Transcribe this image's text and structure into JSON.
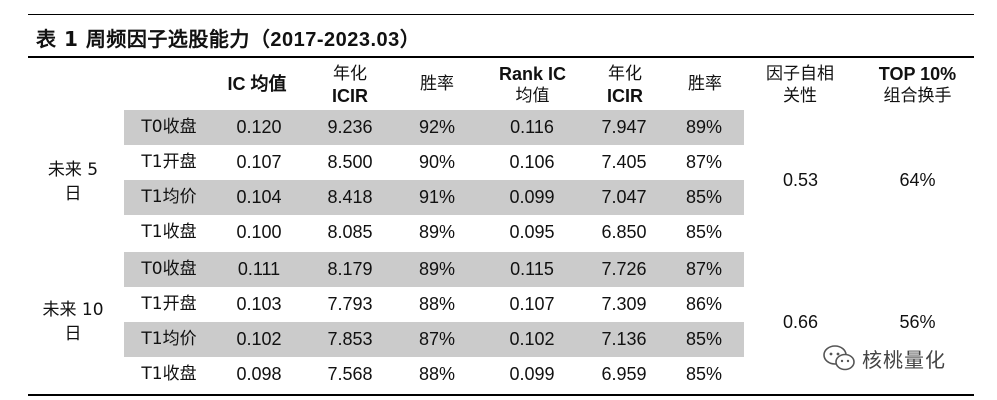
{
  "title": {
    "prefix": "表 1",
    "text": "周频因子选股能力（",
    "range": "2017-2023.03",
    "suffix": "）"
  },
  "headers": {
    "ic_mean": "IC 均值",
    "annual_icir_1": "年化",
    "annual_icir_2": "ICIR",
    "win_rate": "胜率",
    "rank_ic_1": "Rank IC",
    "rank_ic_2": "均值",
    "annual_icir_rank_1": "年化",
    "annual_icir_rank_2": "ICIR",
    "win_rate_rank": "胜率",
    "autocorr_1": "因子自相",
    "autocorr_2": "关性",
    "turnover_1": "TOP 10%",
    "turnover_2": "组合换手"
  },
  "groups": [
    {
      "label_1": "未来 5",
      "label_2": "日",
      "autocorr": "0.53",
      "turnover": "64%",
      "rows": [
        {
          "label": "T0收盘",
          "ic": "0.120",
          "icir": "9.236",
          "win": "92%",
          "rank_ic": "0.116",
          "rank_icir": "7.947",
          "rank_win": "89%"
        },
        {
          "label": "T1开盘",
          "ic": "0.107",
          "icir": "8.500",
          "win": "90%",
          "rank_ic": "0.106",
          "rank_icir": "7.405",
          "rank_win": "87%"
        },
        {
          "label": "T1均价",
          "ic": "0.104",
          "icir": "8.418",
          "win": "91%",
          "rank_ic": "0.099",
          "rank_icir": "7.047",
          "rank_win": "85%"
        },
        {
          "label": "T1收盘",
          "ic": "0.100",
          "icir": "8.085",
          "win": "89%",
          "rank_ic": "0.095",
          "rank_icir": "6.850",
          "rank_win": "85%"
        }
      ]
    },
    {
      "label_1": "未来 10",
      "label_2": "日",
      "autocorr": "0.66",
      "turnover": "56%",
      "rows": [
        {
          "label": "T0收盘",
          "ic": "0.111",
          "icir": "8.179",
          "win": "89%",
          "rank_ic": "0.115",
          "rank_icir": "7.726",
          "rank_win": "87%"
        },
        {
          "label": "T1开盘",
          "ic": "0.103",
          "icir": "7.793",
          "win": "88%",
          "rank_ic": "0.107",
          "rank_icir": "7.309",
          "rank_win": "86%"
        },
        {
          "label": "T1均价",
          "ic": "0.102",
          "icir": "7.853",
          "win": "87%",
          "rank_ic": "0.102",
          "rank_icir": "7.136",
          "rank_win": "85%"
        },
        {
          "label": "T1收盘",
          "ic": "0.098",
          "icir": "7.568",
          "win": "88%",
          "rank_ic": "0.099",
          "rank_icir": "6.959",
          "rank_win": "85%"
        }
      ]
    }
  ],
  "watermark": {
    "text": "核桃量化",
    "icon": "wechat-icon"
  }
}
